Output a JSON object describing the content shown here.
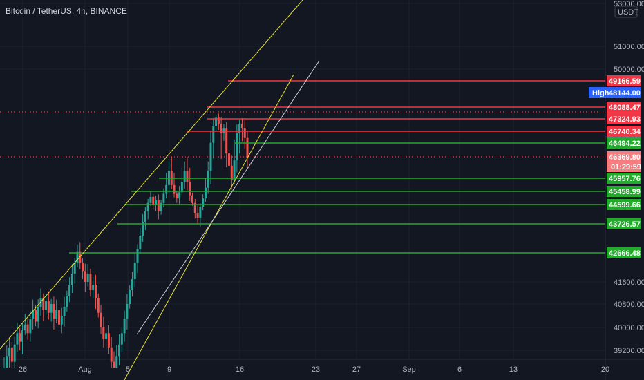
{
  "title": "Bitcoin / TetherUS, 4h, BINANCE",
  "currency_badge": "USDT",
  "countdown": "01:29:59",
  "colors": {
    "background": "#131722",
    "up": "#26a69a",
    "down": "#ef5350",
    "resistance": "#f23645",
    "support": "#22ab2b",
    "channel": "#e8e32c",
    "trend_white": "#d1d4dc",
    "current_tag": "#f77c80",
    "high_tag": "#2962ff"
  },
  "chart_data": {
    "type": "candlestick",
    "symbol": "BTCUSDT",
    "interval": "4h",
    "exchange": "BINANCE",
    "y_axis_ticks": [
      53000,
      51000,
      50000,
      41600,
      40800,
      40000,
      39200
    ],
    "y_range": [
      38800,
      53200
    ],
    "x_axis_ticks": [
      "26",
      "Aug",
      "5",
      "9",
      "16",
      "23",
      "27",
      "Sep",
      "6",
      "13",
      "20"
    ],
    "current_price": 46369.8,
    "high_label": "High",
    "high_value": 48144.0,
    "resistance_levels": [
      49166.59,
      48088.47,
      47324.93,
      46740.34
    ],
    "support_levels": [
      46494.22,
      45957.76,
      45458.99,
      44599.66,
      43726.57,
      42666.48
    ],
    "candles_close": [
      38900,
      39100,
      39300,
      39000,
      39400,
      39800,
      39500,
      39900,
      40100,
      39800,
      40300,
      40600,
      40200,
      40700,
      41000,
      40600,
      40900,
      40500,
      40800,
      40300,
      40600,
      40100,
      40400,
      40700,
      41100,
      41500,
      41900,
      42300,
      42700,
      42300,
      42000,
      41600,
      41900,
      41300,
      41500,
      41000,
      40500,
      40000,
      39600,
      39800,
      39300,
      39000,
      38900,
      39100,
      39400,
      39800,
      40300,
      40800,
      41300,
      41700,
      42300,
      42800,
      43300,
      43800,
      44300,
      44700,
      45100,
      44600,
      44900,
      44300,
      44700,
      45300,
      45700,
      46100,
      45700,
      45300,
      45000,
      45400,
      45800,
      46100,
      45800,
      45200,
      44700,
      44200,
      44000,
      44500,
      45000,
      45600,
      46100,
      46500,
      47000,
      47400,
      47100,
      46700,
      46900,
      46400,
      46200,
      45900,
      46300,
      46700,
      47100,
      46900,
      46600,
      46370
    ]
  }
}
